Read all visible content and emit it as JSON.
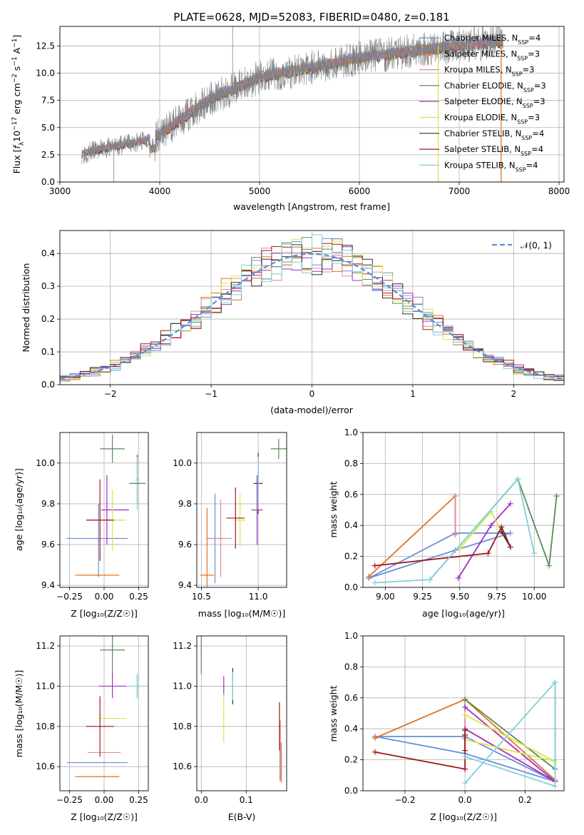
{
  "colors": {
    "chab_miles": "#6a8fdc",
    "salp_miles": "#e0731c",
    "krou_miles": "#e48a9e",
    "chab_elodie": "#5c8a5c",
    "salp_elodie": "#a02fc0",
    "krou_elodie": "#d8e64c",
    "chab_stelib": "#303030",
    "salp_stelib": "#a01818",
    "krou_stelib": "#7fd0d8",
    "norm_line": "#5f8dd6",
    "data_spec": "#808080"
  },
  "chart_data": [
    {
      "id": "spectrum",
      "type": "line",
      "title": "PLATE=0628, MJD=52083, FIBERID=0480, z=0.181",
      "xlabel": "wavelength [Angstrom, rest frame]",
      "ylabel_parts": [
        "Flux [",
        "f",
        "λ",
        "10",
        "−17",
        " erg cm",
        "−2",
        " s",
        "−1",
        " A",
        "−1",
        "]"
      ],
      "xlim": [
        3000,
        8050
      ],
      "ylim": [
        0,
        14.3
      ],
      "xticks": [
        3000,
        4000,
        5000,
        6000,
        7000,
        8000
      ],
      "yticks": [
        0.0,
        2.5,
        5.0,
        7.5,
        10.0,
        12.5
      ],
      "ytick_labels": [
        "0.0",
        "2.5",
        "5.0",
        "7.5",
        "10.0",
        "12.5"
      ],
      "legend_loc": "upper-right",
      "legend": [
        {
          "imf": "Chabrier",
          "lib": "MILES",
          "n": "4",
          "color": "#6a8fdc"
        },
        {
          "imf": "Salpeter",
          "lib": "MILES",
          "n": "3",
          "color": "#e0731c"
        },
        {
          "imf": "Kroupa",
          "lib": "MILES",
          "n": "3",
          "color": "#e48a9e"
        },
        {
          "imf": "Chabrier",
          "lib": "ELODIE",
          "n": "3",
          "color": "#5c8a5c"
        },
        {
          "imf": "Salpeter",
          "lib": "ELODIE",
          "n": "3",
          "color": "#a02fc0"
        },
        {
          "imf": "Kroupa",
          "lib": "ELODIE",
          "n": "3",
          "color": "#d8e64c"
        },
        {
          "imf": "Chabrier",
          "lib": "STELIB",
          "n": "4",
          "color": "#303030"
        },
        {
          "imf": "Salpeter",
          "lib": "STELIB",
          "n": "4",
          "color": "#a01818"
        },
        {
          "imf": "Kroupa",
          "lib": "STELIB",
          "n": "4",
          "color": "#7fd0d8"
        }
      ],
      "legend_label_pre": " ",
      "legend_label_mid": ", N",
      "legend_sub": "SSP",
      "legend_eq": "=",
      "continuum_x": [
        3220,
        3500,
        3800,
        4000,
        4500,
        5000,
        5500,
        6000,
        6500,
        7000,
        7400
      ],
      "continuum_y": [
        2.6,
        3.2,
        3.7,
        4.4,
        7.6,
        9.6,
        10.5,
        11.4,
        12.0,
        12.5,
        12.9
      ],
      "spikes": [
        {
          "x": 4730,
          "y": 14.3
        },
        {
          "x": 3540,
          "y": 0.0
        },
        {
          "x": 7420,
          "y": 0.0
        },
        {
          "x": 6790,
          "y": 0.0
        }
      ]
    },
    {
      "id": "residuals",
      "type": "histogram",
      "xlabel": "(data-model)/error",
      "ylabel": "Normed distribution",
      "xlim": [
        -2.5,
        2.5
      ],
      "ylim": [
        0,
        0.47
      ],
      "xticks": [
        -2,
        -1,
        0,
        1,
        2
      ],
      "xtick_labels": [
        "−2",
        "−1",
        "0",
        "1",
        "2"
      ],
      "yticks": [
        0.0,
        0.1,
        0.2,
        0.3,
        0.4
      ],
      "ytick_labels": [
        "0.0",
        "0.1",
        "0.2",
        "0.3",
        "0.4"
      ],
      "bin_width": 0.1,
      "legend": [
        {
          "label": "𝒩(0, 1)",
          "style": "dashed"
        }
      ],
      "legend_loc": "upper-right"
    },
    {
      "id": "age_vs_Z",
      "type": "errorbar",
      "xlabel": "Z [log₁₀(Z/Z☉)]",
      "ylabel": "age  [log₁₀(age/yr)]",
      "xlim": [
        -0.32,
        0.32
      ],
      "ylim": [
        9.39,
        10.15
      ],
      "xticks": [
        -0.25,
        0.0,
        0.25
      ],
      "xtick_labels": [
        "−0.25",
        "0.00",
        "0.25"
      ],
      "yticks": [
        9.4,
        9.6,
        9.8,
        10.0
      ],
      "ytick_labels": [
        "9.4",
        "9.6",
        "9.8",
        "10.0"
      ],
      "points": [
        {
          "color": "#6a8fdc",
          "x": -0.05,
          "xerr": 0.22,
          "y": 9.63,
          "yerr": 0.0
        },
        {
          "color": "#6a8fdc",
          "x": -0.04,
          "xerr": 0.0,
          "y": 9.62,
          "yerr": 0.18
        },
        {
          "color": "#e0731c",
          "x": -0.05,
          "xerr": 0.16,
          "y": 9.45,
          "yerr": 0.0
        },
        {
          "color": "#e48a9e",
          "x": 0.0,
          "xerr": 0.12,
          "y": 9.72,
          "yerr": 0.0
        },
        {
          "color": "#5c8a5c",
          "x": 0.06,
          "xerr": 0.09,
          "y": 10.07,
          "yerr": 0.07
        },
        {
          "color": "#a02fc0",
          "x": 0.08,
          "xerr": 0.1,
          "y": 9.77,
          "yerr": 0.0
        },
        {
          "color": "#a02fc0",
          "x": 0.02,
          "xerr": 0.0,
          "y": 9.77,
          "yerr": 0.17
        },
        {
          "color": "#d8e64c",
          "x": 0.06,
          "xerr": 0.1,
          "y": 9.72,
          "yerr": 0.15
        },
        {
          "color": "#303030",
          "x": 0.24,
          "xerr": 0.0,
          "y": 9.92,
          "yerr": 0.12
        },
        {
          "color": "#a01818",
          "x": -0.03,
          "xerr": 0.1,
          "y": 9.72,
          "yerr": 0.2
        },
        {
          "color": "#7fd0d8",
          "x": 0.24,
          "xerr": 0.05,
          "y": 9.9,
          "yerr": 0.13
        },
        {
          "color": "#5c8a5c",
          "x": 0.24,
          "xerr": 0.06,
          "y": 9.9,
          "yerr": 0.0
        }
      ]
    },
    {
      "id": "age_vs_mass",
      "type": "errorbar",
      "xlabel": "mass [log₁₀(M/M☉)]",
      "ylabel": "",
      "xlim": [
        10.46,
        11.25
      ],
      "ylim": [
        9.39,
        10.15
      ],
      "xticks": [
        10.5,
        11.0
      ],
      "xtick_labels": [
        "10.5",
        "11.0"
      ],
      "yticks": [
        9.4,
        9.6,
        9.8,
        10.0
      ],
      "ytick_labels": [
        "9.4",
        "9.6",
        "9.8",
        "10.0"
      ],
      "points": [
        {
          "color": "#6a8fdc",
          "x": 10.62,
          "xerr": 0.07,
          "y": 9.63,
          "yerr": 0.22
        },
        {
          "color": "#e0731c",
          "x": 10.55,
          "xerr": 0.06,
          "y": 9.45,
          "yerr": 0.33
        },
        {
          "color": "#e48a9e",
          "x": 10.67,
          "xerr": 0.1,
          "y": 9.63,
          "yerr": 0.19
        },
        {
          "color": "#5c8a5c",
          "x": 11.18,
          "xerr": 0.07,
          "y": 10.07,
          "yerr": 0.05
        },
        {
          "color": "#a02fc0",
          "x": 10.99,
          "xerr": 0.05,
          "y": 9.77,
          "yerr": 0.17
        },
        {
          "color": "#d8e64c",
          "x": 10.84,
          "xerr": 0.05,
          "y": 9.72,
          "yerr": 0.13
        },
        {
          "color": "#303030",
          "x": 11.0,
          "xerr": 0.04,
          "y": 9.9,
          "yerr": 0.15
        },
        {
          "color": "#a01818",
          "x": 10.8,
          "xerr": 0.08,
          "y": 9.73,
          "yerr": 0.15
        },
        {
          "color": "#7fd0d8",
          "x": 11.0,
          "xerr": 0.0,
          "y": 9.9,
          "yerr": 0.13
        }
      ]
    },
    {
      "id": "weight_vs_age",
      "type": "line",
      "xlabel": "age  [log₁₀(age/yr)]",
      "ylabel": "mass weight",
      "xlim": [
        8.85,
        10.2
      ],
      "ylim": [
        0,
        1.0
      ],
      "xticks": [
        9.0,
        9.25,
        9.5,
        9.75,
        10.0
      ],
      "xtick_labels": [
        "9.00",
        "9.25",
        "9.50",
        "9.75",
        "10.00"
      ],
      "yticks": [
        0.0,
        0.2,
        0.4,
        0.6,
        0.8,
        1.0
      ],
      "ytick_labels": [
        "0.0",
        "0.2",
        "0.4",
        "0.6",
        "0.8",
        "1.0"
      ],
      "series": [
        {
          "color": "#6a8fdc",
          "x": [
            8.89,
            9.47,
            9.84,
            9.47,
            8.89
          ],
          "y": [
            0.06,
            0.35,
            0.35,
            0.24,
            0.06
          ]
        },
        {
          "color": "#e0731c",
          "x": [
            8.89,
            9.47,
            9.47
          ],
          "y": [
            0.07,
            0.59,
            0.34
          ]
        },
        {
          "color": "#e48a9e",
          "x": [
            9.47,
            9.47
          ],
          "y": [
            0.59,
            0.34
          ]
        },
        {
          "color": "#5c8a5c",
          "x": [
            9.3,
            9.89,
            10.1,
            10.15
          ],
          "y": [
            0.05,
            0.7,
            0.14,
            0.59
          ]
        },
        {
          "color": "#a02fc0",
          "x": [
            9.49,
            9.71,
            9.84
          ],
          "y": [
            0.06,
            0.4,
            0.54
          ]
        },
        {
          "color": "#d8e64c",
          "x": [
            9.5,
            9.71,
            9.8
          ],
          "y": [
            0.25,
            0.49,
            0.33
          ]
        },
        {
          "color": "#303030",
          "x": [
            9.78,
            9.84
          ],
          "y": [
            0.36,
            0.26
          ]
        },
        {
          "color": "#a01818",
          "x": [
            8.93,
            9.69,
            9.78,
            9.84
          ],
          "y": [
            0.14,
            0.22,
            0.39,
            0.26
          ]
        },
        {
          "color": "#7fd0d8",
          "x": [
            8.93,
            9.3,
            9.89,
            10.0
          ],
          "y": [
            0.03,
            0.05,
            0.7,
            0.22
          ]
        }
      ]
    },
    {
      "id": "mass_vs_Z",
      "type": "errorbar",
      "xlabel": "Z [log₁₀(Z/Z☉)]",
      "ylabel": "mass [log₁₀(M/M☉)]",
      "xlim": [
        -0.32,
        0.32
      ],
      "ylim": [
        10.48,
        11.25
      ],
      "xticks": [
        -0.25,
        0.0,
        0.25
      ],
      "xtick_labels": [
        "−0.25",
        "0.00",
        "0.25"
      ],
      "yticks": [
        10.6,
        10.8,
        11.0,
        11.2
      ],
      "ytick_labels": [
        "10.6",
        "10.8",
        "11.0",
        "11.2"
      ],
      "points": [
        {
          "color": "#6a8fdc",
          "x": -0.05,
          "xerr": 0.22,
          "y": 10.62,
          "yerr": 0.0
        },
        {
          "color": "#e0731c",
          "x": -0.05,
          "xerr": 0.16,
          "y": 10.55,
          "yerr": 0.0
        },
        {
          "color": "#e48a9e",
          "x": 0.0,
          "xerr": 0.12,
          "y": 10.67,
          "yerr": 0.0
        },
        {
          "color": "#5c8a5c",
          "x": 0.06,
          "xerr": 0.09,
          "y": 11.18,
          "yerr": 0.13
        },
        {
          "color": "#a02fc0",
          "x": 0.06,
          "xerr": 0.1,
          "y": 11.0,
          "yerr": 0.06
        },
        {
          "color": "#d8e64c",
          "x": 0.06,
          "xerr": 0.1,
          "y": 10.84,
          "yerr": 0.0
        },
        {
          "color": "#303030",
          "x": 0.24,
          "xerr": 0.0,
          "y": 11.0,
          "yerr": 0.06
        },
        {
          "color": "#a01818",
          "x": -0.03,
          "xerr": 0.1,
          "y": 10.8,
          "yerr": 0.15
        },
        {
          "color": "#7fd0d8",
          "x": 0.24,
          "xerr": 0.06,
          "y": 11.0,
          "yerr": 0.06
        }
      ]
    },
    {
      "id": "mass_vs_ebv",
      "type": "errorbar",
      "xlabel": "E(B-V)",
      "ylabel": "",
      "xlim": [
        -0.01,
        0.19
      ],
      "ylim": [
        10.48,
        11.25
      ],
      "xticks": [
        0.0,
        0.1
      ],
      "xtick_labels": [
        "0.0",
        "0.1"
      ],
      "yticks": [
        10.6,
        10.8,
        11.0,
        11.2
      ],
      "ytick_labels": [
        "10.6",
        "10.8",
        "11.0",
        "11.2"
      ],
      "points": [
        {
          "color": "#6a8fdc",
          "x": 0.175,
          "xerr": 0.0,
          "y": 10.62,
          "yerr": 0.09
        },
        {
          "color": "#e0731c",
          "x": 0.178,
          "xerr": 0.0,
          "y": 10.62,
          "yerr": 0.1
        },
        {
          "color": "#e48a9e",
          "x": 0.176,
          "xerr": 0.0,
          "y": 10.68,
          "yerr": 0.15
        },
        {
          "color": "#5c8a5c",
          "x": 0.0,
          "xerr": 0.0,
          "y": 11.18,
          "yerr": 0.12
        },
        {
          "color": "#a02fc0",
          "x": 0.05,
          "xerr": 0.0,
          "y": 11.0,
          "yerr": 0.05
        },
        {
          "color": "#d8e64c",
          "x": 0.05,
          "xerr": 0.0,
          "y": 10.84,
          "yerr": 0.12
        },
        {
          "color": "#303030",
          "x": 0.07,
          "xerr": 0.0,
          "y": 11.0,
          "yerr": 0.09
        },
        {
          "color": "#a01818",
          "x": 0.174,
          "xerr": 0.0,
          "y": 10.8,
          "yerr": 0.12
        },
        {
          "color": "#7fd0d8",
          "x": 0.07,
          "xerr": 0.0,
          "y": 11.0,
          "yerr": 0.07
        }
      ]
    },
    {
      "id": "weight_vs_Z",
      "type": "line",
      "xlabel": "Z [log₁₀(Z/Z☉)]",
      "ylabel": "mass weight",
      "xlim": [
        -0.34,
        0.33
      ],
      "ylim": [
        0,
        1.0
      ],
      "xticks": [
        -0.2,
        0.0,
        0.2
      ],
      "xtick_labels": [
        "−0.2",
        "0.0",
        "0.2"
      ],
      "yticks": [
        0.0,
        0.2,
        0.4,
        0.6,
        0.8,
        1.0
      ],
      "ytick_labels": [
        "0.0",
        "0.2",
        "0.4",
        "0.6",
        "0.8",
        "1.0"
      ],
      "series": [
        {
          "color": "#6a8fdc",
          "x": [
            -0.3,
            0.0,
            0.3,
            0.0,
            -0.3
          ],
          "y": [
            0.35,
            0.24,
            0.06,
            0.35,
            0.35
          ]
        },
        {
          "color": "#e0731c",
          "x": [
            -0.3,
            0.0,
            0.3
          ],
          "y": [
            0.34,
            0.59,
            0.07
          ]
        },
        {
          "color": "#e48a9e",
          "x": [
            0.0,
            0.0
          ],
          "y": [
            0.59,
            0.34
          ]
        },
        {
          "color": "#5c8a5c",
          "x": [
            0.0,
            0.3,
            0.3
          ],
          "y": [
            0.59,
            0.14,
            0.7
          ]
        },
        {
          "color": "#a02fc0",
          "x": [
            0.0,
            0.3,
            0.0
          ],
          "y": [
            0.54,
            0.06,
            0.4
          ]
        },
        {
          "color": "#d8e64c",
          "x": [
            0.0,
            0.3,
            0.0
          ],
          "y": [
            0.33,
            0.19,
            0.49
          ]
        },
        {
          "color": "#303030",
          "x": [
            0.0,
            0.0
          ],
          "y": [
            0.36,
            0.26
          ]
        },
        {
          "color": "#a01818",
          "x": [
            -0.3,
            0.0,
            0.0,
            0.0
          ],
          "y": [
            0.25,
            0.14,
            0.39,
            0.26
          ]
        },
        {
          "color": "#7fd0d8",
          "x": [
            0.0,
            0.3,
            0.3,
            0.0
          ],
          "y": [
            0.05,
            0.7,
            0.03,
            0.22
          ]
        }
      ]
    }
  ]
}
